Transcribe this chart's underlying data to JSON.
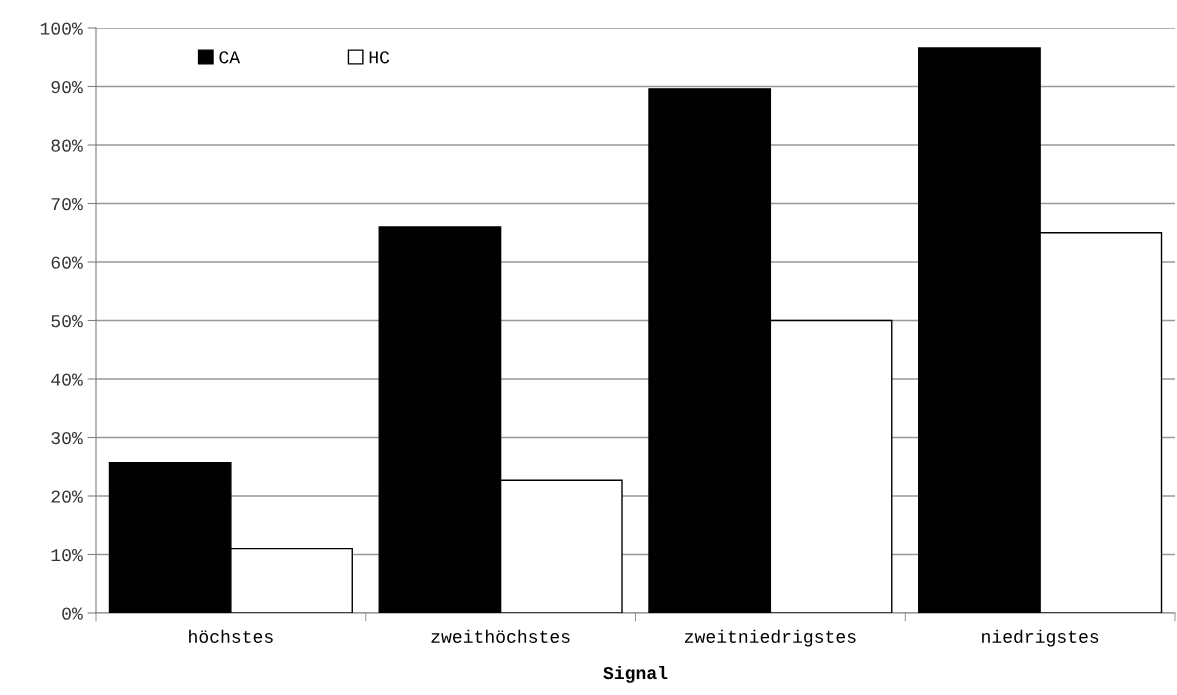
{
  "chart_data": {
    "type": "bar",
    "xlabel": "Signal",
    "categories": [
      "höchstes",
      "zweithöchstes",
      "zweitniedrigstes",
      "niedrigstes"
    ],
    "series": [
      {
        "name": "CA",
        "color": "#000000",
        "values": [
          25.7,
          66.0,
          89.6,
          96.6
        ]
      },
      {
        "name": "HC",
        "color": "#ffffff",
        "values": [
          11.0,
          22.7,
          50.0,
          65.0
        ]
      }
    ],
    "ylim": [
      0,
      100
    ],
    "yticks": [
      {
        "value": 0,
        "label": "0%"
      },
      {
        "value": 10,
        "label": "10%"
      },
      {
        "value": 20,
        "label": "20%"
      },
      {
        "value": 30,
        "label": "30%"
      },
      {
        "value": 40,
        "label": "40%"
      },
      {
        "value": 50,
        "label": "50%"
      },
      {
        "value": 60,
        "label": "60%"
      },
      {
        "value": 70,
        "label": "70%"
      },
      {
        "value": 80,
        "label": "80%"
      },
      {
        "value": 90,
        "label": "90%"
      },
      {
        "value": 100,
        "label": "100%"
      }
    ],
    "grid": "y",
    "legend": "top left"
  }
}
